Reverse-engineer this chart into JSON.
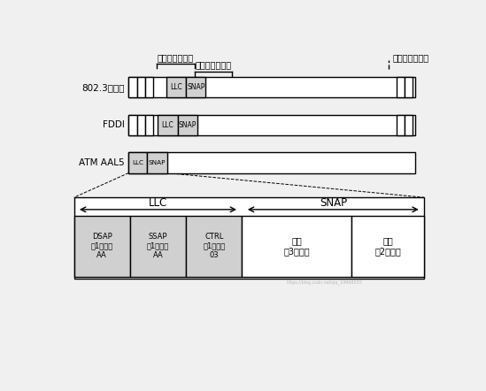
{
  "bg_color": "#f0f0f0",
  "label_mac_left": "介质访问控制层",
  "label_llc": "逻辑链路控制层",
  "label_mac_right": "介质访问控制层",
  "row_labels": [
    "802.3以太网",
    "FDDI",
    "ATM AAL5"
  ],
  "llc_text": "LLC",
  "snap_text": "SNAP",
  "dsap_text": "DSAP\n（1字节）\nAA",
  "ssap_text": "SSAP\n（1字节）\nAA",
  "ctrl_text": "CTRL\n（1字节）\n03",
  "vendor_text": "厂商\n（3字节）",
  "type_text": "类型\n（2字节）",
  "gray_color": "#b8b8b8",
  "light_gray": "#d0d0d0",
  "white_color": "#ffffff",
  "line_color": "#000000",
  "watermark": "https://blog.csdn.net/qq_19968255"
}
